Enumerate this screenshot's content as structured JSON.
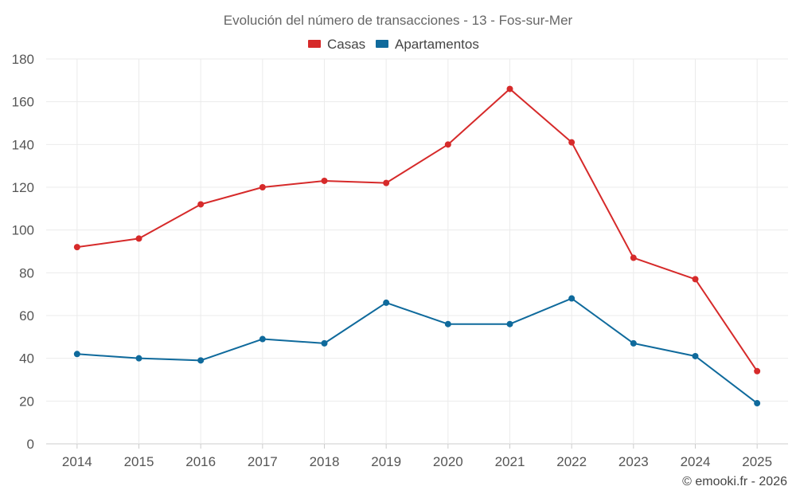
{
  "chart_data": {
    "type": "line",
    "title": "Evolución del número de transacciones - 13 - Fos-sur-Mer",
    "categories": [
      "2014",
      "2015",
      "2016",
      "2017",
      "2018",
      "2019",
      "2020",
      "2021",
      "2022",
      "2023",
      "2024",
      "2025"
    ],
    "series": [
      {
        "name": "Casas",
        "color": "#d62a2a",
        "values": [
          92,
          96,
          112,
          120,
          123,
          122,
          140,
          166,
          141,
          87,
          77,
          34
        ]
      },
      {
        "name": "Apartamentos",
        "color": "#0f6a9c",
        "values": [
          42,
          40,
          39,
          49,
          47,
          66,
          56,
          56,
          68,
          47,
          41,
          19
        ]
      }
    ],
    "ylim": [
      0,
      180
    ],
    "yticks": [
      0,
      20,
      40,
      60,
      80,
      100,
      120,
      140,
      160,
      180
    ],
    "xlabel": "",
    "ylabel": "",
    "grid": true,
    "legend_position": "top-center"
  },
  "credit": "© emooki.fr - 2026"
}
